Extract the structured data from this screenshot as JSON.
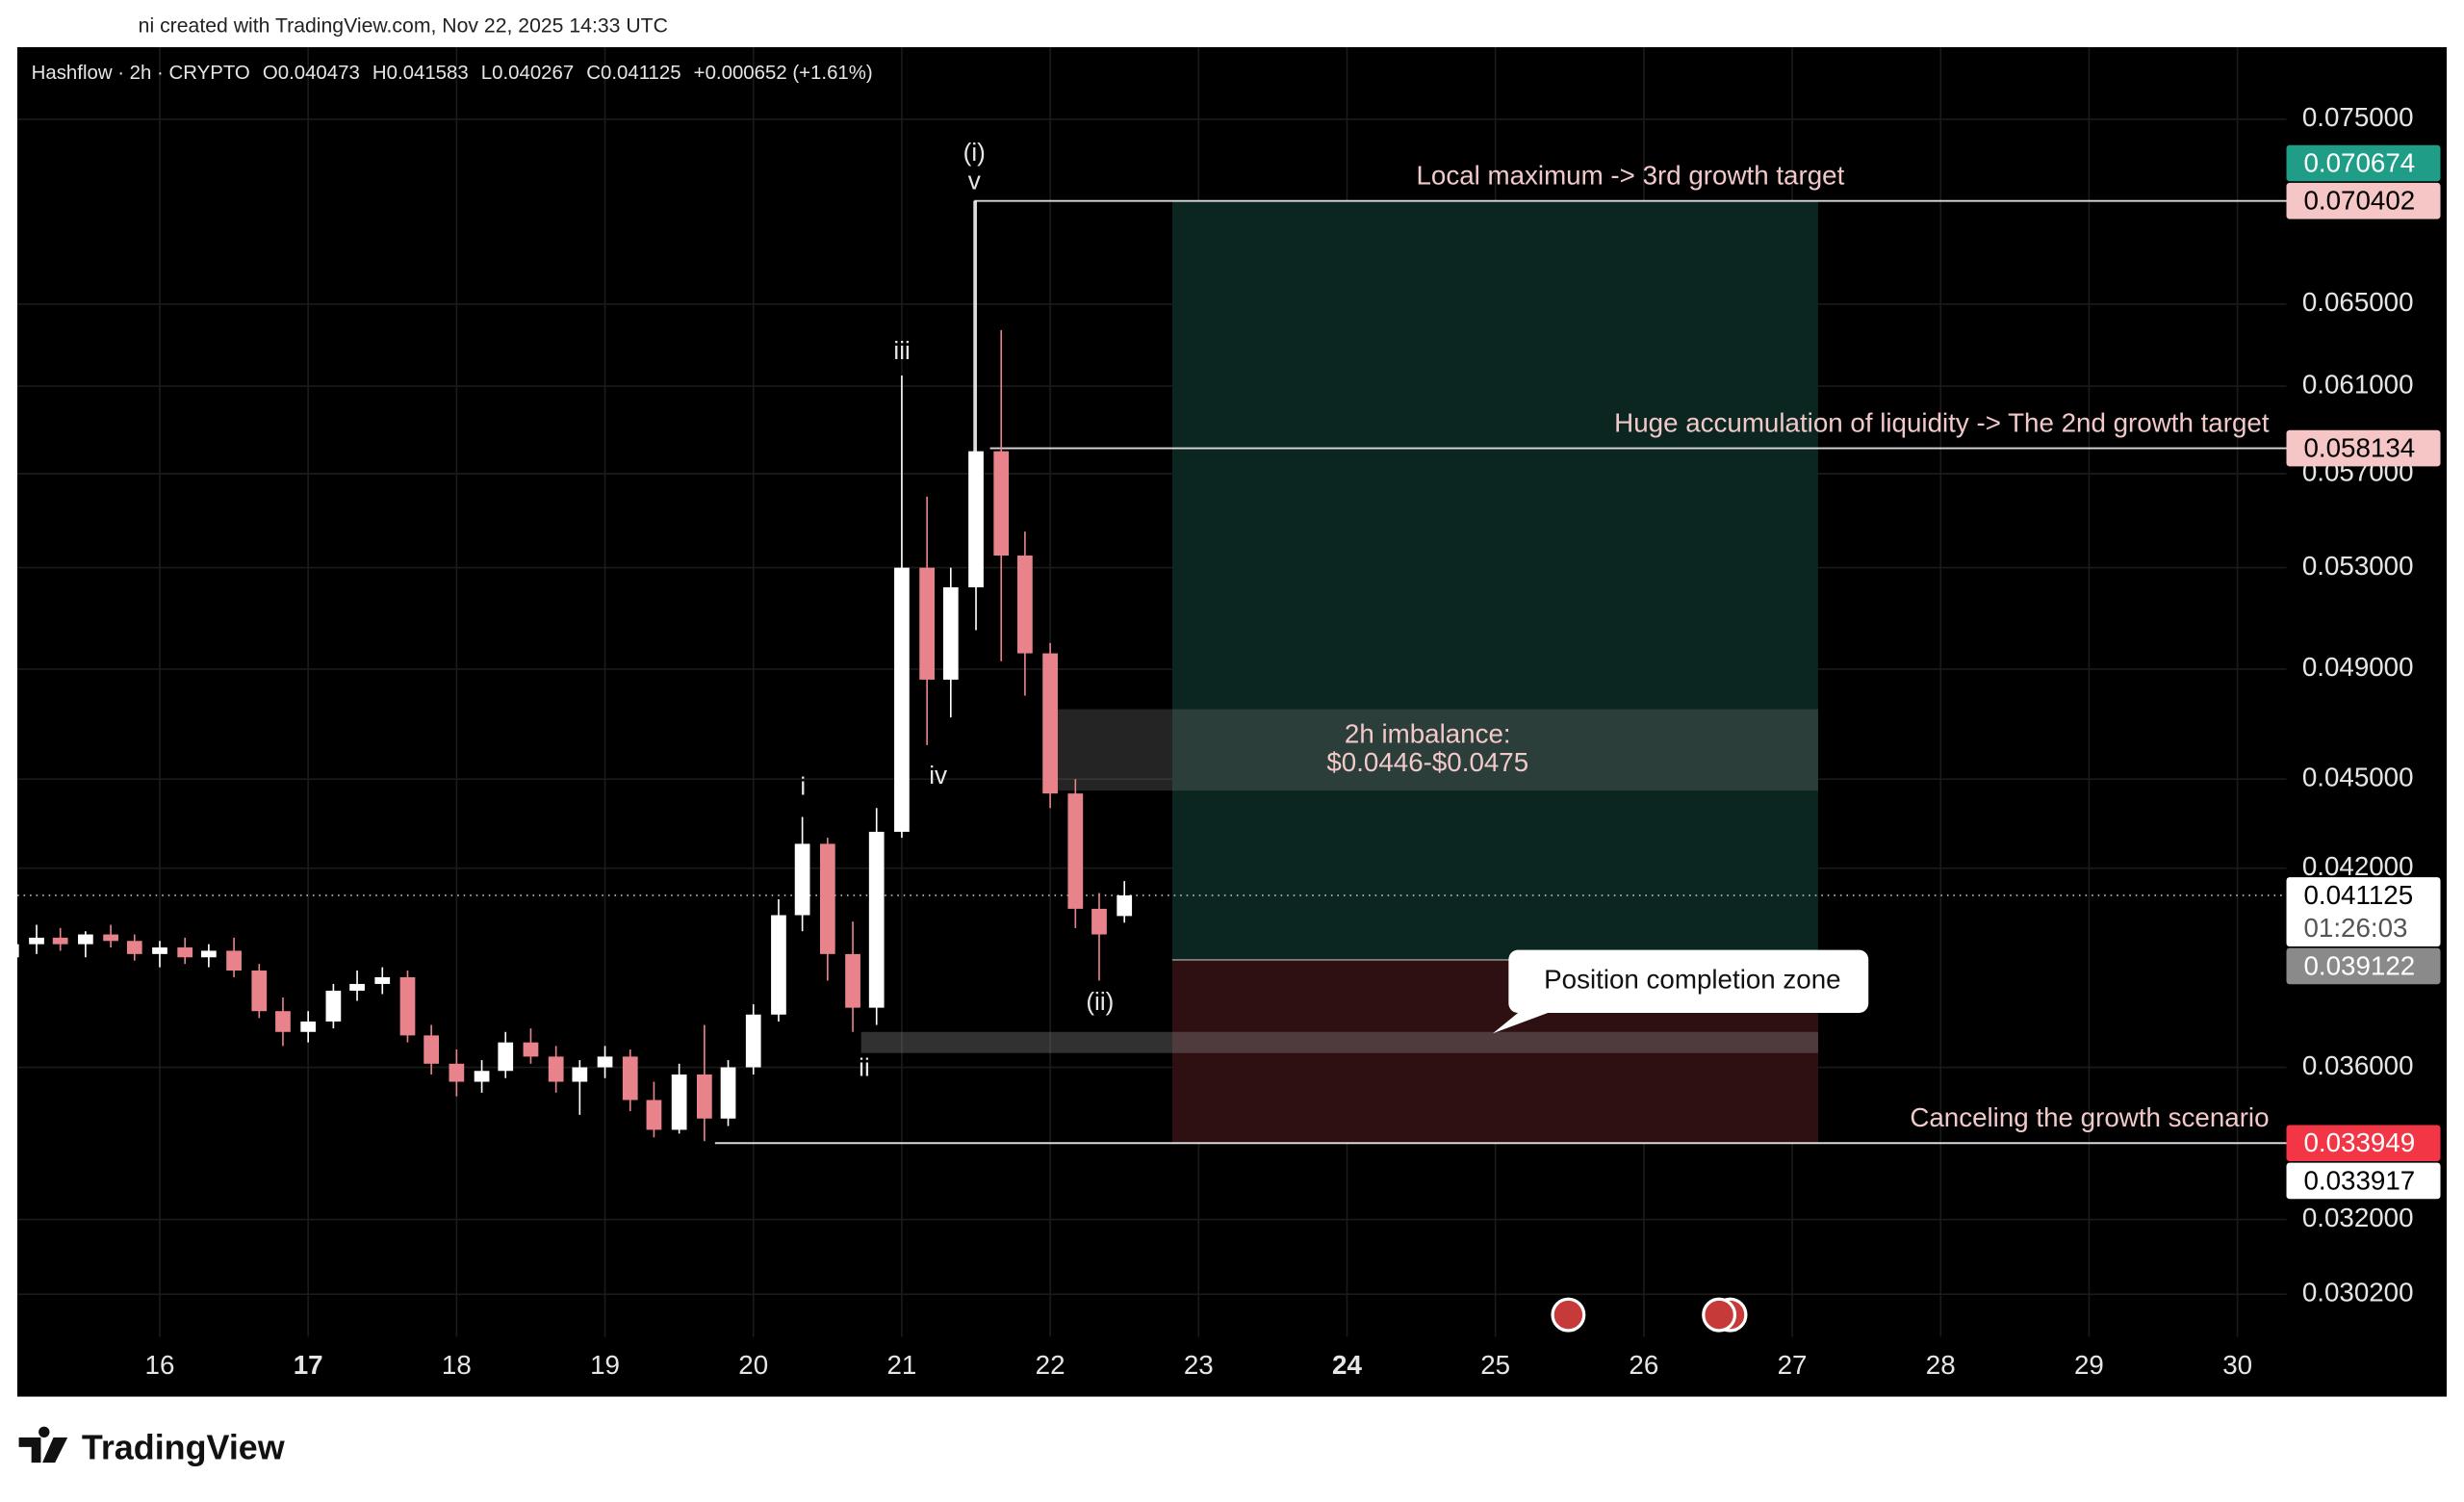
{
  "header": {
    "credit": "ni created with TradingView.com, Nov 22, 2025 14:33 UTC"
  },
  "footer": {
    "brand": "TradingView"
  },
  "chart_data": {
    "type": "candlestick",
    "legend": {
      "symbol": "Hashflow · 2h · CRYPTO",
      "open": "O0.040473",
      "high": "H0.041583",
      "low": "L0.040267",
      "close": "C0.041125",
      "change": "+0.000652 (+1.61%)"
    },
    "log_scale": true,
    "grid": true,
    "up_color": "#ffffff",
    "down_color": "#e9838b",
    "xlim": [
      15.04,
      30.33
    ],
    "xticks": [
      16,
      17,
      18,
      19,
      20,
      21,
      22,
      23,
      24,
      25,
      26,
      27,
      28,
      29,
      30
    ],
    "xtick_bold": [
      17,
      24
    ],
    "ylim": [
      0.02922,
      0.0793
    ],
    "yticks": [
      {
        "value": 0.075,
        "label": "0.075000"
      },
      {
        "value": 0.065,
        "label": "0.065000"
      },
      {
        "value": 0.061,
        "label": "0.061000"
      },
      {
        "value": 0.057,
        "label": "0.057000"
      },
      {
        "value": 0.053,
        "label": "0.053000"
      },
      {
        "value": 0.049,
        "label": "0.049000"
      },
      {
        "value": 0.045,
        "label": "0.045000"
      },
      {
        "value": 0.042,
        "label": "0.042000"
      },
      {
        "value": 0.036,
        "label": "0.036000"
      },
      {
        "value": 0.032,
        "label": "0.032000"
      },
      {
        "value": 0.0302,
        "label": "0.030200"
      }
    ],
    "x": [
      15.0,
      15.17,
      15.33,
      15.5,
      15.67,
      15.83,
      16.0,
      16.17,
      16.33,
      16.5,
      16.67,
      16.83,
      17.0,
      17.17,
      17.33,
      17.5,
      17.67,
      17.83,
      18.0,
      18.17,
      18.33,
      18.5,
      18.67,
      18.83,
      19.0,
      19.17,
      19.33,
      19.5,
      19.67,
      19.83,
      20.0,
      20.17,
      20.33,
      20.5,
      20.67,
      20.83,
      21.0,
      21.17,
      21.33,
      21.5,
      21.67,
      21.83,
      22.0,
      22.17,
      22.33,
      22.5
    ],
    "open": [
      0.0392,
      0.0396,
      0.0398,
      0.0396,
      0.0399,
      0.0397,
      0.0393,
      0.0395,
      0.0392,
      0.0394,
      0.0388,
      0.0376,
      0.037,
      0.0373,
      0.0382,
      0.0384,
      0.0386,
      0.0369,
      0.0361,
      0.0356,
      0.0359,
      0.0367,
      0.0363,
      0.0356,
      0.036,
      0.0363,
      0.0351,
      0.0343,
      0.0358,
      0.0346,
      0.036,
      0.0375,
      0.0405,
      0.0428,
      0.0393,
      0.0377,
      0.0432,
      0.053,
      0.0486,
      0.0522,
      0.058,
      0.0535,
      0.0496,
      0.0445,
      0.0407,
      0.040473
    ],
    "high": [
      0.0398,
      0.0402,
      0.0401,
      0.04,
      0.0402,
      0.0399,
      0.0397,
      0.0398,
      0.0396,
      0.0398,
      0.039,
      0.038,
      0.0376,
      0.0384,
      0.0388,
      0.0389,
      0.0388,
      0.0372,
      0.0365,
      0.0362,
      0.037,
      0.0371,
      0.0366,
      0.0362,
      0.0366,
      0.0365,
      0.0356,
      0.0361,
      0.0372,
      0.0362,
      0.0378,
      0.041,
      0.0437,
      0.043,
      0.0403,
      0.044,
      0.0615,
      0.056,
      0.053,
      0.0704,
      0.0637,
      0.0545,
      0.05,
      0.045,
      0.0412,
      0.041583
    ],
    "low": [
      0.0388,
      0.0393,
      0.0394,
      0.0392,
      0.0395,
      0.0391,
      0.0389,
      0.039,
      0.0389,
      0.0386,
      0.0374,
      0.0366,
      0.0367,
      0.0371,
      0.0379,
      0.0381,
      0.0367,
      0.0358,
      0.0352,
      0.0353,
      0.0357,
      0.0361,
      0.0353,
      0.0347,
      0.0357,
      0.0348,
      0.0341,
      0.0342,
      0.034,
      0.0344,
      0.0358,
      0.0373,
      0.04,
      0.0385,
      0.037,
      0.0372,
      0.043,
      0.0462,
      0.0472,
      0.0505,
      0.0493,
      0.048,
      0.044,
      0.0401,
      0.0385,
      0.040267
    ],
    "close": [
      0.0396,
      0.0398,
      0.0396,
      0.0399,
      0.0397,
      0.0393,
      0.0395,
      0.0392,
      0.0394,
      0.0388,
      0.0376,
      0.037,
      0.0373,
      0.0382,
      0.0384,
      0.0386,
      0.0369,
      0.0361,
      0.0356,
      0.0359,
      0.0367,
      0.0363,
      0.0356,
      0.036,
      0.0363,
      0.0351,
      0.0343,
      0.0358,
      0.0346,
      0.036,
      0.0375,
      0.0405,
      0.0428,
      0.0393,
      0.0377,
      0.0432,
      0.053,
      0.0486,
      0.0522,
      0.058,
      0.0535,
      0.0496,
      0.0445,
      0.0407,
      0.0399,
      0.041125
    ],
    "levels": [
      {
        "text": "Local maximum -> 3rd growth target",
        "value": 0.070402,
        "align": "center"
      },
      {
        "text": "Huge accumulation of liquidity -> The 2nd growth target",
        "value": 0.058134,
        "align": "right"
      },
      {
        "text": "Canceling the growth scenario",
        "value": 0.033949,
        "align": "right"
      }
    ],
    "position": {
      "target": 0.070402,
      "entry": 0.039122,
      "stop": 0.033949,
      "profit_color": "#0b2620",
      "loss_color": "#2e1013"
    },
    "imbalance": {
      "text": [
        "2h imbalance:",
        "$0.0446-$0.0475"
      ],
      "low": 0.0446,
      "high": 0.0475
    },
    "completion_zone": {
      "label": "Position completion zone",
      "low": 0.0364,
      "high": 0.037
    },
    "wave_labels": [
      "(i)",
      "v",
      "iii",
      "iv",
      "i",
      "ii",
      "(ii)"
    ],
    "price_labels": [
      {
        "value": 0.070402,
        "color": "#f6c6c6",
        "text_color": "#000000"
      },
      {
        "value": 0.070674,
        "color": "#1f9d86",
        "text_color": "#ffffff"
      },
      {
        "value": 0.058134,
        "color": "#f6c6c6",
        "text_color": "#000000"
      },
      {
        "value": 0.041125,
        "color": "#ffffff",
        "text_color": "#000000",
        "countdown": "01:26:03"
      },
      {
        "value": 0.039122,
        "color": "#8a8a8a",
        "text_color": "#ffffff"
      },
      {
        "value": 0.033949,
        "color": "#f23645",
        "text_color": "#ffffff"
      },
      {
        "value": 0.033917,
        "color": "#ffffff",
        "text_color": "#000000"
      }
    ]
  }
}
